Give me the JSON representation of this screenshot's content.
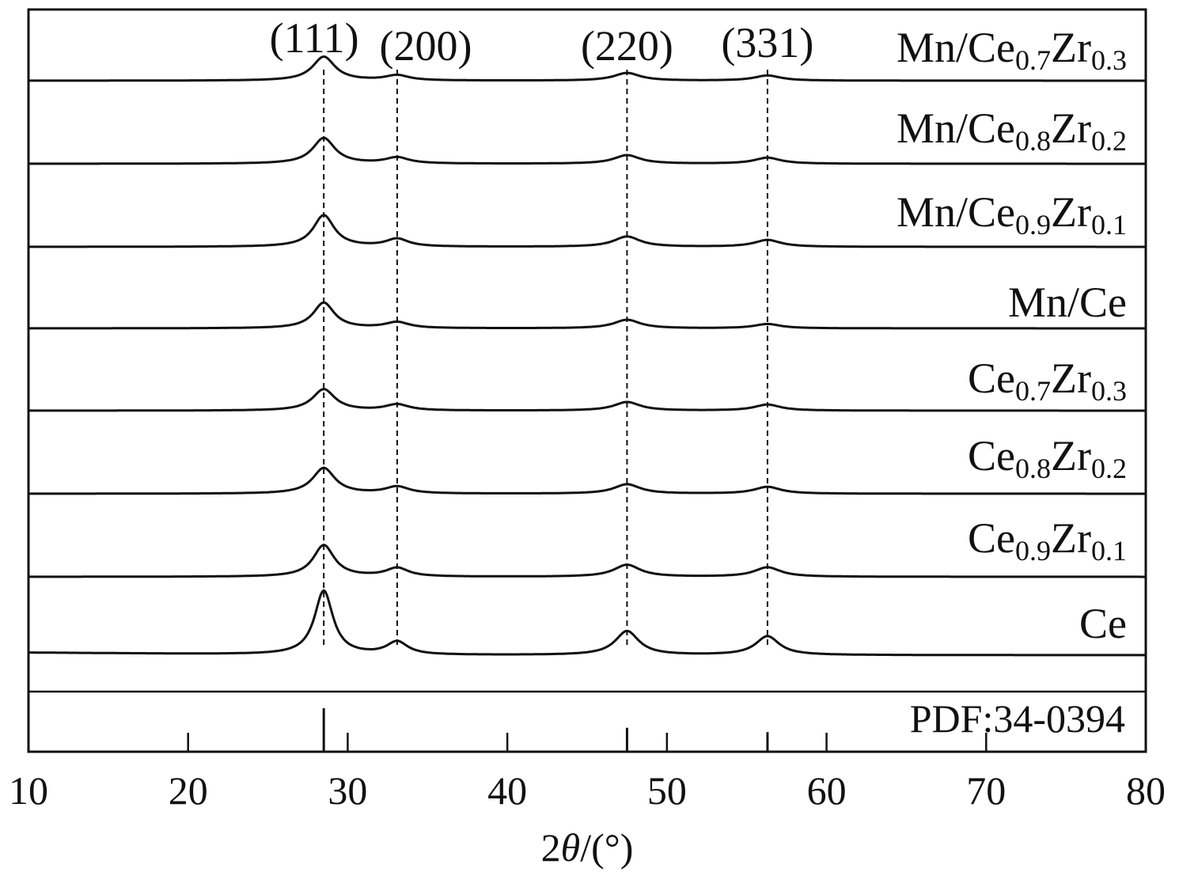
{
  "chart_data": {
    "type": "line",
    "xlabel": {
      "main": "2",
      "theta": "θ",
      "unit": "/(°)"
    },
    "ylabel": "",
    "xlim": [
      10,
      80
    ],
    "xticks": [
      "10",
      "20",
      "30",
      "40",
      "50",
      "60",
      "70",
      "80"
    ],
    "grid": false,
    "stacked_offset": true,
    "peak_positions": [
      28.5,
      33.1,
      47.5,
      56.3
    ],
    "peak_labels": [
      "(111)",
      "(200)",
      "(220)",
      "(331)"
    ],
    "reference": {
      "label": "PDF:34-0394",
      "lines": [
        {
          "x": 28.5,
          "relative_intensity": 1.0
        },
        {
          "x": 47.5,
          "relative_intensity": 0.55
        },
        {
          "x": 56.3,
          "relative_intensity": 0.45
        }
      ]
    },
    "series": [
      {
        "name": {
          "base": "Mn/Ce",
          "sub1": "0.7",
          "mid": "Zr",
          "sub2": "0.3"
        },
        "offset": 7,
        "peak_heights": [
          0.28,
          0.06,
          0.09,
          0.06
        ],
        "peak_widths": [
          0.85,
          0.9,
          1.0,
          1.0
        ]
      },
      {
        "name": {
          "base": "Mn/Ce",
          "sub1": "0.8",
          "mid": "Zr",
          "sub2": "0.2"
        },
        "offset": 6,
        "peak_heights": [
          0.3,
          0.07,
          0.1,
          0.07
        ],
        "peak_widths": [
          0.85,
          0.9,
          1.0,
          1.0
        ]
      },
      {
        "name": {
          "base": "Mn/Ce",
          "sub1": "0.9",
          "mid": "Zr",
          "sub2": "0.1"
        },
        "offset": 5,
        "peak_heights": [
          0.37,
          0.09,
          0.12,
          0.08
        ],
        "peak_widths": [
          0.8,
          0.85,
          1.0,
          1.0
        ]
      },
      {
        "name": {
          "base": "Mn/Ce",
          "sub1": "",
          "mid": "",
          "sub2": ""
        },
        "offset": 4,
        "peak_heights": [
          0.3,
          0.07,
          0.1,
          0.05
        ],
        "peak_widths": [
          0.8,
          0.9,
          1.0,
          1.0
        ]
      },
      {
        "name": {
          "base": "Ce",
          "sub1": "0.7",
          "mid": "Zr",
          "sub2": "0.3"
        },
        "offset": 3,
        "peak_heights": [
          0.25,
          0.07,
          0.1,
          0.07
        ],
        "peak_widths": [
          0.85,
          0.9,
          1.0,
          1.0
        ]
      },
      {
        "name": {
          "base": "Ce",
          "sub1": "0.8",
          "mid": "Zr",
          "sub2": "0.2"
        },
        "offset": 2,
        "peak_heights": [
          0.3,
          0.08,
          0.11,
          0.08
        ],
        "peak_widths": [
          0.85,
          0.9,
          1.0,
          1.0
        ]
      },
      {
        "name": {
          "base": "Ce",
          "sub1": "0.9",
          "mid": "Zr",
          "sub2": "0.1"
        },
        "offset": 1,
        "peak_heights": [
          0.37,
          0.1,
          0.14,
          0.11
        ],
        "peak_widths": [
          0.8,
          0.85,
          1.0,
          1.0
        ]
      },
      {
        "name": {
          "base": "Ce",
          "sub1": "",
          "mid": "",
          "sub2": ""
        },
        "offset": 0,
        "peak_heights": [
          0.75,
          0.15,
          0.28,
          0.22
        ],
        "peak_widths": [
          0.7,
          0.8,
          0.9,
          0.9
        ]
      }
    ]
  }
}
